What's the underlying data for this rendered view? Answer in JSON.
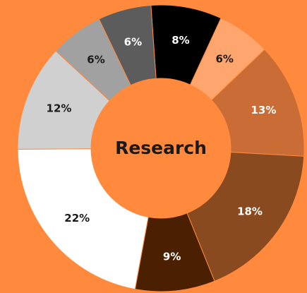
{
  "chart_data": {
    "type": "donut",
    "center_label": "Research",
    "values": [
      8,
      6,
      13,
      18,
      9,
      22,
      12,
      6,
      6
    ],
    "value_labels": [
      "8%",
      "6%",
      "13%",
      "18%",
      "9%",
      "22%",
      "12%",
      "6%",
      "6%"
    ],
    "colors": [
      "#000000",
      "#ffa56e",
      "#c96c36",
      "#8a4a1f",
      "#4a2000",
      "#ffffff",
      "#d0d0d0",
      "#a1a1a1",
      "#5c5c5c"
    ],
    "background": "#ff8a3d"
  }
}
